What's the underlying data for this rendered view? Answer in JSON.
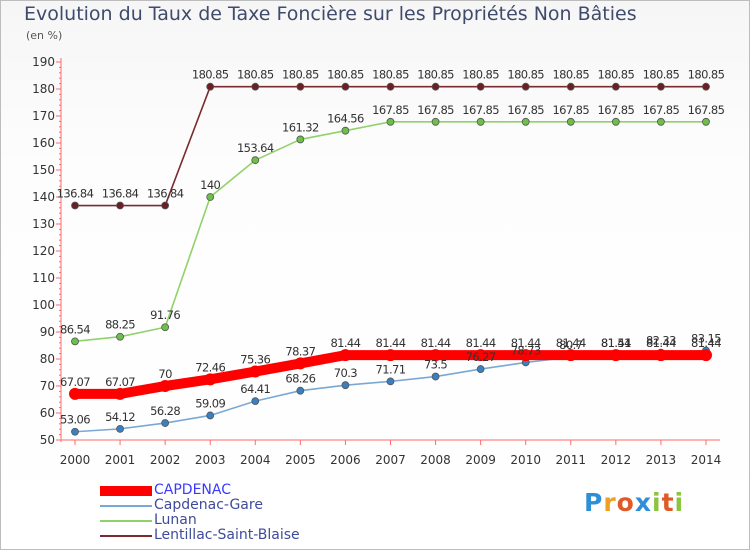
{
  "title": "Evolution du Taux de Taxe Foncière sur les Propriétés Non Bâties",
  "unit_label": "(en %)",
  "logo": {
    "letters": [
      {
        "ch": "P",
        "color": "#2e8fd6"
      },
      {
        "ch": "r",
        "color": "#f0a020"
      },
      {
        "ch": "o",
        "color": "#e05a28"
      },
      {
        "ch": "x",
        "color": "#2e8fd6"
      },
      {
        "ch": "i",
        "color": "#8cc43f"
      },
      {
        "ch": "t",
        "color": "#e05a28"
      },
      {
        "ch": "i",
        "color": "#8cc43f"
      }
    ]
  },
  "chart_data": {
    "type": "line",
    "title": "Evolution du Taux de Taxe Foncière sur les Propriétés Non Bâties",
    "ylabel": "(en %)",
    "xlabel": "",
    "x": [
      "2000",
      "2001",
      "2002",
      "2003",
      "2004",
      "2005",
      "2006",
      "2007",
      "2008",
      "2009",
      "2010",
      "2011",
      "2012",
      "2013",
      "2014"
    ],
    "ylim": [
      50,
      190
    ],
    "yticks": [
      50,
      60,
      70,
      80,
      90,
      100,
      110,
      120,
      130,
      140,
      150,
      160,
      170,
      180,
      190
    ],
    "grid": false,
    "legend_position": "bottom-left",
    "series": [
      {
        "name": "CAPDENAC",
        "color": "#ff0000",
        "point_color": "#ff0000",
        "values": [
          67.07,
          67.07,
          70,
          72.46,
          75.36,
          78.37,
          81.44,
          81.44,
          81.44,
          81.44,
          81.44,
          81.44,
          81.44,
          81.44,
          81.44
        ],
        "labels": [
          "67.07",
          "67.07",
          "70",
          "72.46",
          "75.36",
          "78.37",
          "81.44",
          "81.44",
          "81.44",
          "81.44",
          "81.44",
          "81.44",
          "81.44",
          "81.44",
          "81.44"
        ]
      },
      {
        "name": "Capdenac-Gare",
        "color": "#7aa8d4",
        "point_color": "#3a80c0",
        "values": [
          53.06,
          54.12,
          56.28,
          59.09,
          64.41,
          68.26,
          70.3,
          71.71,
          73.5,
          76.27,
          78.73,
          80.7,
          81.51,
          82.33,
          83.15
        ],
        "labels": [
          "53.06",
          "54.12",
          "56.28",
          "59.09",
          "64.41",
          "68.26",
          "70.3",
          "71.71",
          "73.5",
          "76.27",
          "78.73",
          "80.7",
          "81.51",
          "82.33",
          "83.15"
        ]
      },
      {
        "name": "Lunan",
        "color": "#90d26a",
        "point_color": "#6cc04a",
        "values": [
          86.54,
          88.25,
          91.76,
          140,
          153.64,
          161.32,
          164.56,
          167.85,
          167.85,
          167.85,
          167.85,
          167.85,
          167.85,
          167.85,
          167.85
        ],
        "labels": [
          "86.54",
          "88.25",
          "91.76",
          "140",
          "153.64",
          "161.32",
          "164.56",
          "167.85",
          "167.85",
          "167.85",
          "167.85",
          "167.85",
          "167.85",
          "167.85",
          "167.85"
        ]
      },
      {
        "name": "Lentillac-Saint-Blaise",
        "color": "#7a2b30",
        "point_color": "#6a1f24",
        "values": [
          136.84,
          136.84,
          136.84,
          180.85,
          180.85,
          180.85,
          180.85,
          180.85,
          180.85,
          180.85,
          180.85,
          180.85,
          180.85,
          180.85,
          180.85
        ],
        "labels": [
          "136.84",
          "136.84",
          "136.84",
          "180.85",
          "180.85",
          "180.85",
          "180.85",
          "180.85",
          "180.85",
          "180.85",
          "180.85",
          "180.85",
          "180.85",
          "180.85",
          "180.85"
        ]
      }
    ]
  }
}
